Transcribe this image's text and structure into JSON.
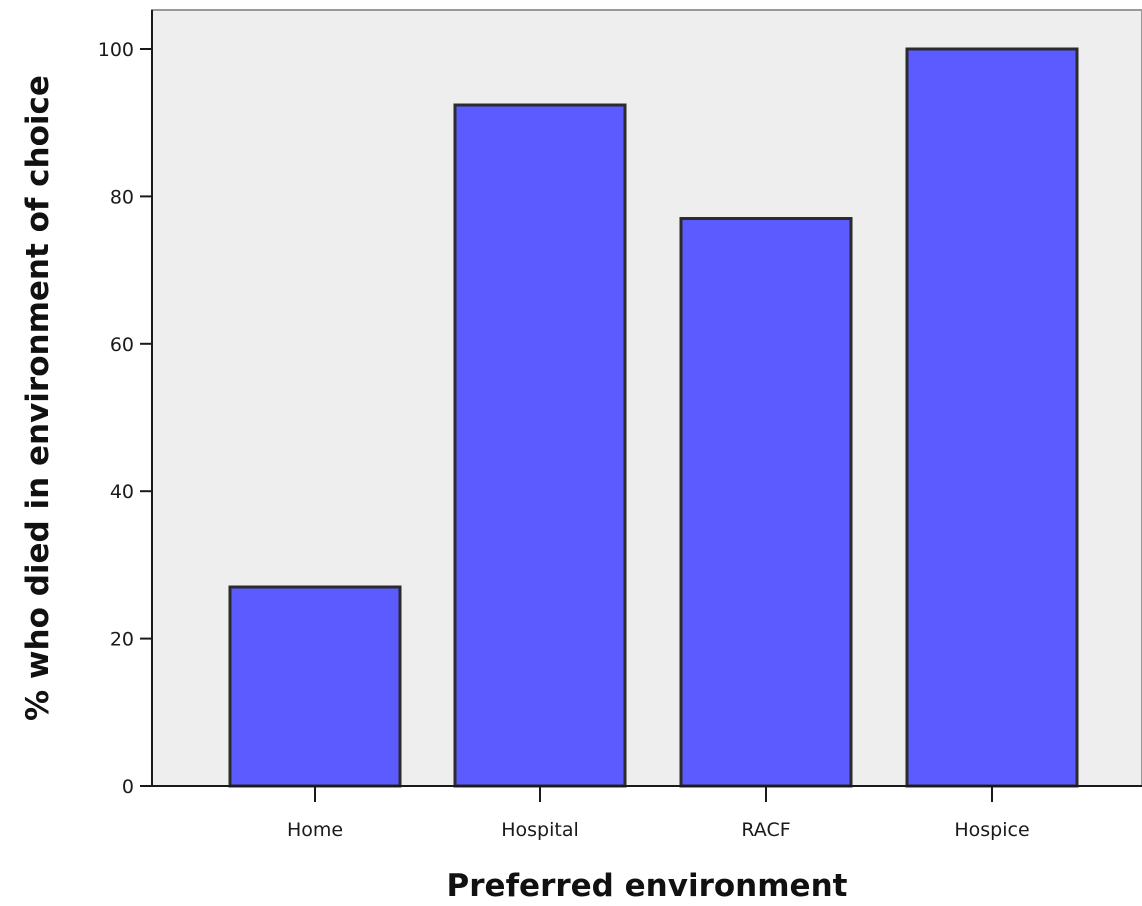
{
  "chart_data": {
    "type": "bar",
    "categories": [
      "Home",
      "Hospital",
      "RACF",
      "Hospice"
    ],
    "values": [
      27,
      92.4,
      77,
      100
    ],
    "xlabel": "Preferred environment",
    "ylabel": "% who died in environment of choice",
    "ylim": [
      0,
      100
    ],
    "yticks": [
      0,
      20,
      40,
      60,
      80,
      100
    ],
    "grid": false,
    "legend": "none"
  },
  "colors": {
    "bar_fill": "#5b5bff",
    "bar_stroke": "#2b2b2b",
    "plot_background": "#eeeeee",
    "axis": "#1a1a1a",
    "frame": "#999999"
  }
}
